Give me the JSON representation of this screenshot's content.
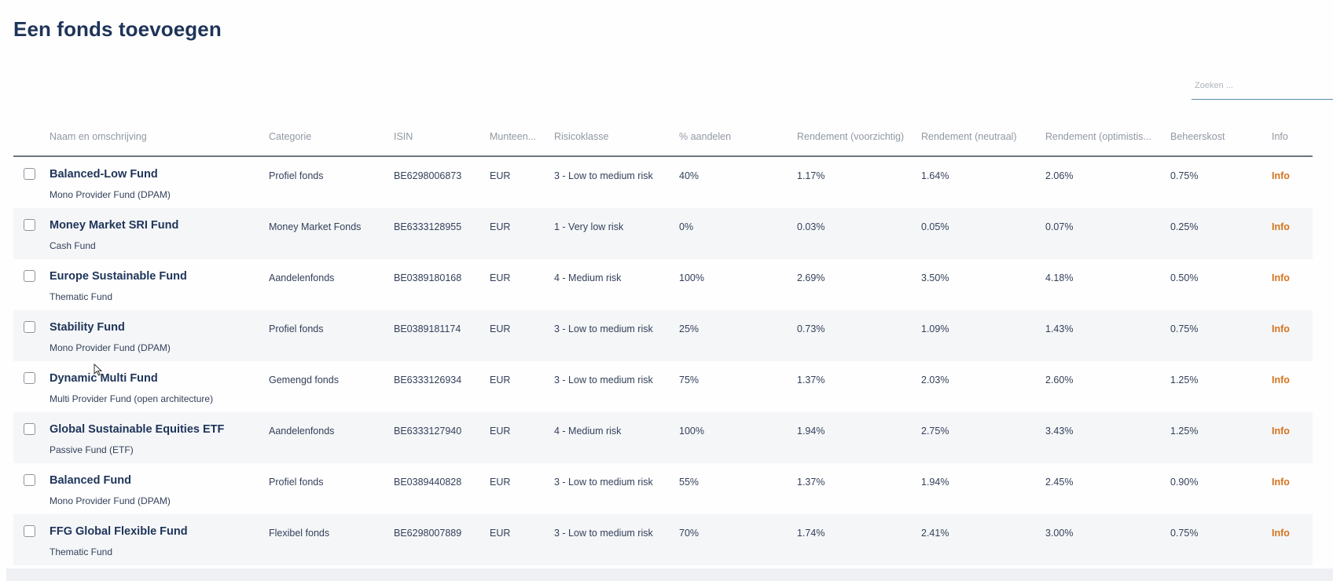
{
  "page": {
    "title": "Een fonds toevoegen"
  },
  "search": {
    "placeholder": "Zoeken ...",
    "value": ""
  },
  "table": {
    "headers": {
      "name": "Naam en omschrijving",
      "category": "Categorie",
      "isin": "ISIN",
      "currency": "Munteen...",
      "risk": "Risicoklasse",
      "equity": "% aandelen",
      "ret_cautious": "Rendement (voorzichtig)",
      "ret_neutral": "Rendement (neutraal)",
      "ret_optimistic": "Rendement (optimistis...",
      "fee": "Beheerskost",
      "info": "Info"
    },
    "rows": [
      {
        "name": "Balanced-Low Fund",
        "desc": "Mono Provider Fund (DPAM)",
        "category": "Profiel fonds",
        "isin": "BE6298006873",
        "currency": "EUR",
        "risk": "3 - Low to medium risk",
        "equity": "40%",
        "ret_cautious": "1.17%",
        "ret_neutral": "1.64%",
        "ret_optimistic": "2.06%",
        "fee": "0.75%",
        "info": "Info"
      },
      {
        "name": "Money Market SRI Fund",
        "desc": "Cash Fund",
        "category": "Money Market Fonds",
        "isin": "BE6333128955",
        "currency": "EUR",
        "risk": "1 - Very low risk",
        "equity": "0%",
        "ret_cautious": "0.03%",
        "ret_neutral": "0.05%",
        "ret_optimistic": "0.07%",
        "fee": "0.25%",
        "info": "Info"
      },
      {
        "name": "Europe Sustainable Fund",
        "desc": "Thematic Fund",
        "category": "Aandelenfonds",
        "isin": "BE0389180168",
        "currency": "EUR",
        "risk": "4 - Medium risk",
        "equity": "100%",
        "ret_cautious": "2.69%",
        "ret_neutral": "3.50%",
        "ret_optimistic": "4.18%",
        "fee": "0.50%",
        "info": "Info"
      },
      {
        "name": "Stability Fund",
        "desc": "Mono Provider Fund (DPAM)",
        "category": "Profiel fonds",
        "isin": "BE0389181174",
        "currency": "EUR",
        "risk": "3 - Low to medium risk",
        "equity": "25%",
        "ret_cautious": "0.73%",
        "ret_neutral": "1.09%",
        "ret_optimistic": "1.43%",
        "fee": "0.75%",
        "info": "Info"
      },
      {
        "name": "Dynamic Multi Fund",
        "desc": "Multi Provider Fund (open architecture)",
        "category": "Gemengd fonds",
        "isin": "BE6333126934",
        "currency": "EUR",
        "risk": "3 - Low to medium risk",
        "equity": "75%",
        "ret_cautious": "1.37%",
        "ret_neutral": "2.03%",
        "ret_optimistic": "2.60%",
        "fee": "1.25%",
        "info": "Info"
      },
      {
        "name": "Global Sustainable Equities ETF",
        "desc": "Passive Fund (ETF)",
        "category": "Aandelenfonds",
        "isin": "BE6333127940",
        "currency": "EUR",
        "risk": "4 - Medium risk",
        "equity": "100%",
        "ret_cautious": "1.94%",
        "ret_neutral": "2.75%",
        "ret_optimistic": "3.43%",
        "fee": "1.25%",
        "info": "Info"
      },
      {
        "name": "Balanced Fund",
        "desc": "Mono Provider Fund (DPAM)",
        "category": "Profiel fonds",
        "isin": "BE0389440828",
        "currency": "EUR",
        "risk": "3 - Low to medium risk",
        "equity": "55%",
        "ret_cautious": "1.37%",
        "ret_neutral": "1.94%",
        "ret_optimistic": "2.45%",
        "fee": "0.90%",
        "info": "Info"
      },
      {
        "name": "FFG Global Flexible Fund",
        "desc": "Thematic Fund",
        "category": "Flexibel fonds",
        "isin": "BE6298007889",
        "currency": "EUR",
        "risk": "3 - Low to medium risk",
        "equity": "70%",
        "ret_cautious": "1.74%",
        "ret_neutral": "2.41%",
        "ret_optimistic": "3.00%",
        "fee": "0.75%",
        "info": "Info"
      }
    ]
  }
}
